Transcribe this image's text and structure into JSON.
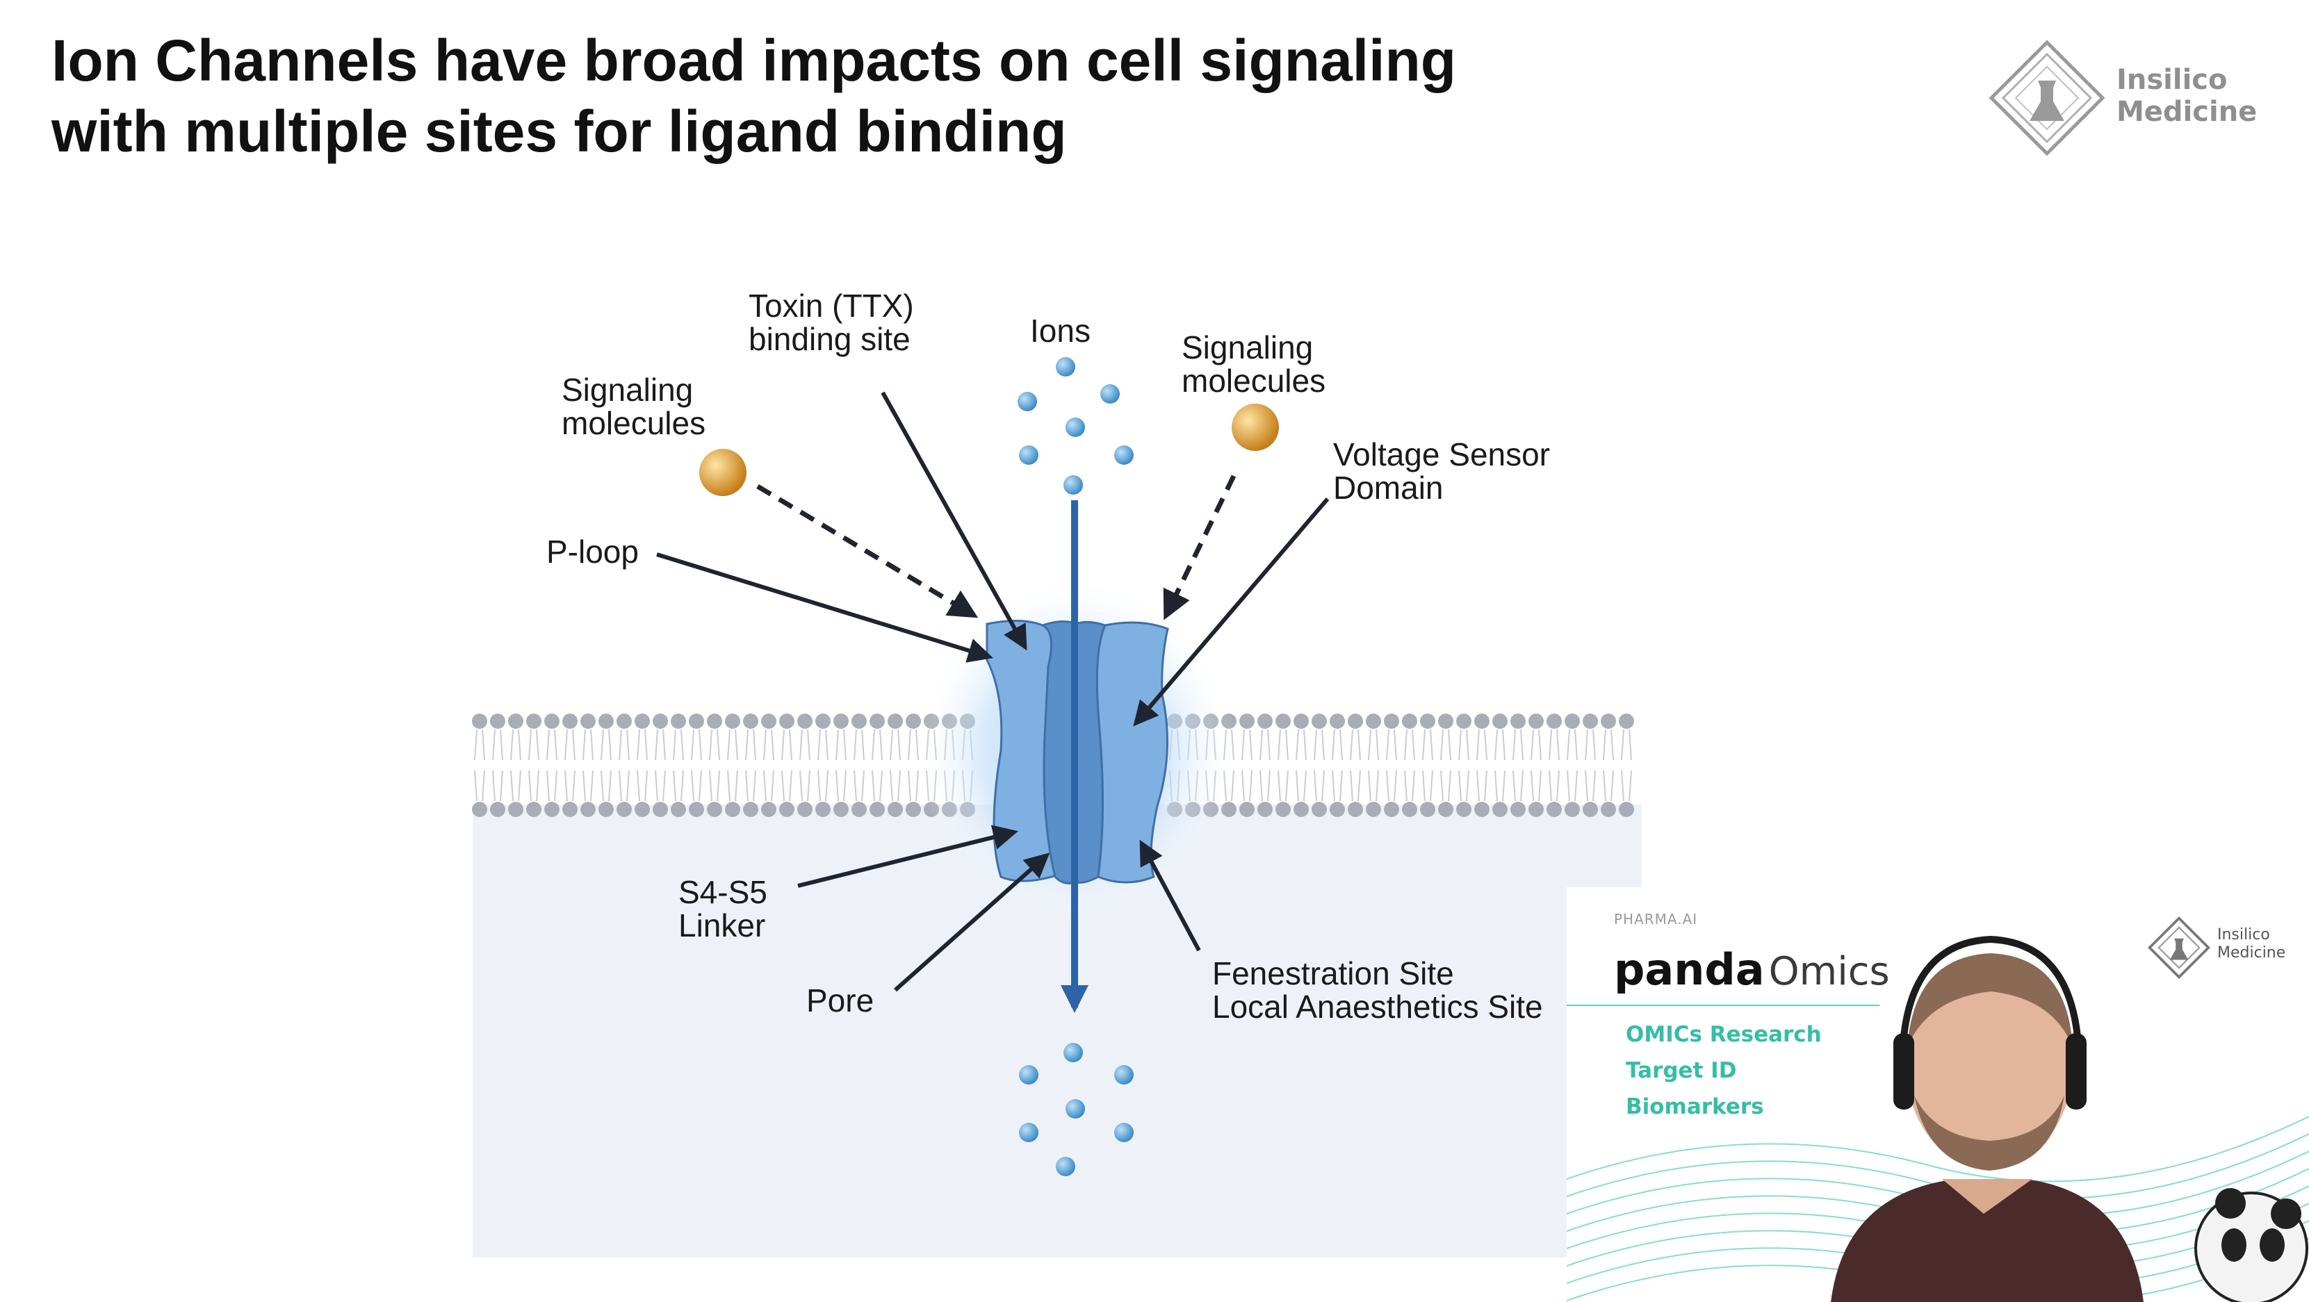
{
  "slide": {
    "title_line1": "Ion Channels have broad impacts on cell signaling",
    "title_line2": "with multiple sites for ligand binding"
  },
  "logo": {
    "line1": "Insilico",
    "line2": "Medicine"
  },
  "labels": {
    "toxin_line1": "Toxin (TTX)",
    "toxin_line2": "binding site",
    "ions": "Ions",
    "signaling_left_line1": "Signaling",
    "signaling_left_line2": "molecules",
    "signaling_right_line1": "Signaling",
    "signaling_right_line2": "molecules",
    "voltage_line1": "Voltage Sensor",
    "voltage_line2": "Domain",
    "ploop": "P-loop",
    "s4s5_line1": "S4-S5",
    "s4s5_line2": "Linker",
    "pore": "Pore",
    "fenestration_line1": "Fenestration Site",
    "fenestration_line2": "Local Anaesthetics Site"
  },
  "colors": {
    "ion": "#5aa6dc",
    "signal": "#e0a030",
    "channel": "#7fb0e2",
    "channel_dark": "#5b8fc9",
    "membrane_head": "#a9adb7",
    "cytoplasm": "#eef2f8",
    "arrow": "#1f2530",
    "accent": "#34bea6"
  },
  "video": {
    "pharma_label": "PHARMA.AI",
    "brand_bold": "panda",
    "brand_light": "Omics",
    "menu": [
      "OMICs Research",
      "Target ID",
      "Biomarkers"
    ],
    "logo_line1": "Insilico",
    "logo_line2": "Medicine"
  }
}
